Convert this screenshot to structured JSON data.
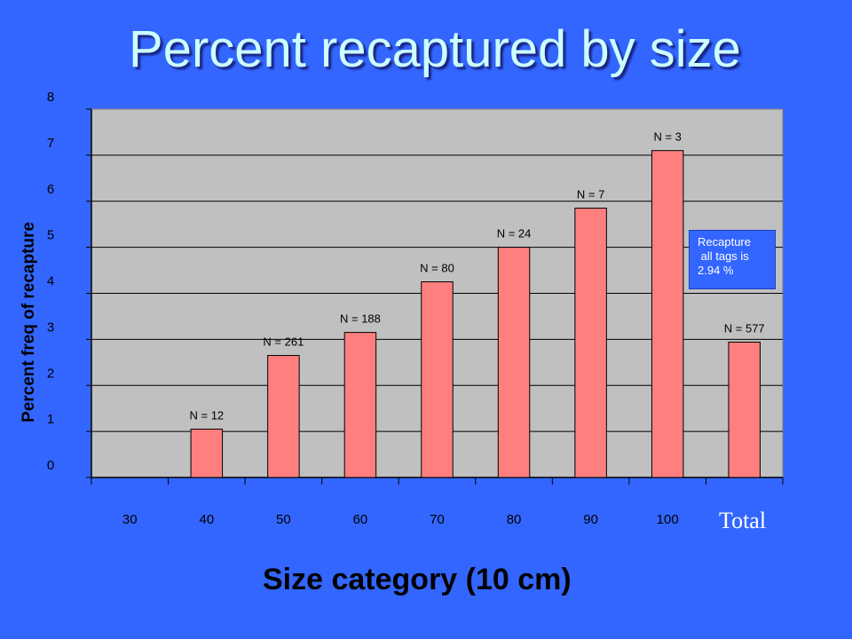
{
  "slide_title": "Percent recaptured by size",
  "total_label": "Total",
  "annotation": "Recapture\n all tags is\n2.94 %",
  "chart_data": {
    "type": "bar",
    "title": "Percent recaptured by size",
    "xlabel": "Size category (10 cm)",
    "ylabel": "Percent freq of recapture",
    "ylim": [
      0,
      8
    ],
    "yticks": [
      0,
      1,
      2,
      3,
      4,
      5,
      6,
      7,
      8
    ],
    "grid": true,
    "categories": [
      "30",
      "40",
      "50",
      "60",
      "70",
      "80",
      "90",
      "100",
      "Total"
    ],
    "values": [
      0,
      1.05,
      2.65,
      3.15,
      4.25,
      5.0,
      5.85,
      7.1,
      2.94
    ],
    "data_labels": [
      "",
      "N = 12",
      "N = 261",
      "N = 188",
      "N = 80",
      "N = 24",
      "N = 7",
      "N = 3",
      "N = 577"
    ],
    "colors": {
      "background": "#3366ff",
      "plot_area": "#c0c0c0",
      "bar": "#ff7f7f",
      "title": "#ccffff"
    }
  }
}
